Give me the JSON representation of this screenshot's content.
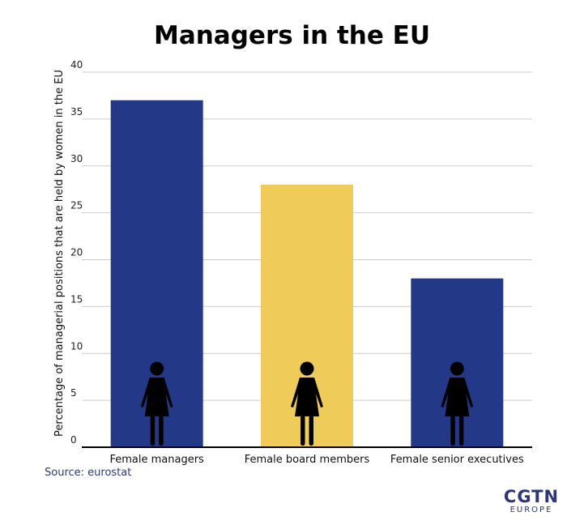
{
  "title": "Managers in the EU",
  "source": "Source: eurostat",
  "logo": {
    "main": "CGTN",
    "sub": "EUROPE"
  },
  "colors": {
    "navy": "#233987",
    "yellow": "#efcc5a",
    "grid": "#cccccc",
    "figure": "#000000"
  },
  "icons": [
    "woman-figure-icon"
  ],
  "chart_data": {
    "type": "bar",
    "title": "Managers in the EU",
    "categories": [
      "Female managers",
      "Female board members",
      "Female senior executives"
    ],
    "values": [
      37,
      28,
      18
    ],
    "bar_colors": [
      "#233987",
      "#efcc5a",
      "#233987"
    ],
    "ylabel": "Percentage of managerial positions that are held by women in the EU",
    "xlabel": "",
    "ylim": [
      0,
      40
    ],
    "yticks": [
      0,
      5,
      10,
      15,
      20,
      25,
      30,
      35,
      40
    ],
    "grid": true
  }
}
